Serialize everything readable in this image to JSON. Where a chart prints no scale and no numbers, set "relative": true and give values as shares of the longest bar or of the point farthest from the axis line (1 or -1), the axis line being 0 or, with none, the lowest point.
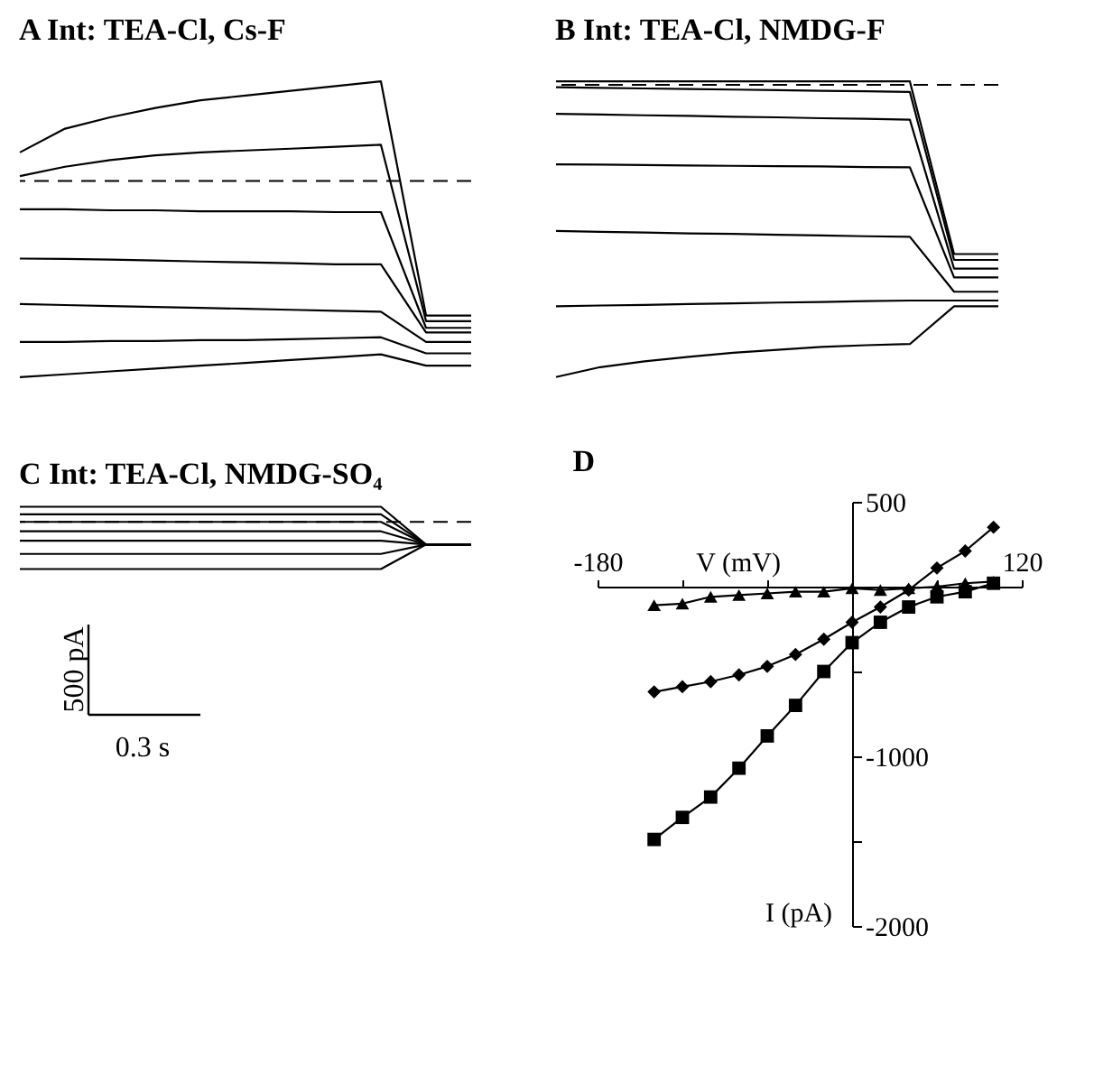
{
  "chart_data": [
    {
      "type": "line",
      "title": "A Int: TEA-Cl, Cs-F",
      "relative": true,
      "line_style": "solid",
      "marker": "none",
      "categories": [
        null,
        null,
        null,
        null,
        null,
        null,
        null,
        null,
        null,
        null,
        null
      ],
      "ref_lines": [
        {
          "axis": "y",
          "value": 0,
          "line_style": "dashed",
          "color": "#000000"
        }
      ],
      "series": [
        {
          "color": "#000000",
          "values": [
            0.145,
            0.266,
            0.324,
            0.372,
            0.411,
            0.435,
            0.459,
            0.483,
            0.507,
            -0.686,
            -0.686
          ]
        },
        {
          "color": "#000000",
          "values": [
            0.024,
            0.072,
            0.106,
            0.13,
            0.145,
            0.155,
            0.164,
            0.174,
            0.184,
            -0.715,
            -0.715
          ]
        },
        {
          "color": "#000000",
          "values": [
            -0.145,
            -0.145,
            -0.15,
            -0.15,
            -0.155,
            -0.155,
            -0.155,
            -0.159,
            -0.159,
            -0.749,
            -0.749
          ]
        },
        {
          "color": "#000000",
          "values": [
            -0.396,
            -0.398,
            -0.401,
            -0.406,
            -0.411,
            -0.415,
            -0.42,
            -0.425,
            -0.425,
            -0.773,
            -0.773
          ]
        },
        {
          "color": "#000000",
          "values": [
            -0.628,
            -0.633,
            -0.638,
            -0.643,
            -0.647,
            -0.652,
            -0.657,
            -0.662,
            -0.667,
            -0.821,
            -0.821
          ]
        },
        {
          "color": "#000000",
          "values": [
            -0.821,
            -0.821,
            -0.816,
            -0.816,
            -0.812,
            -0.812,
            -0.807,
            -0.802,
            -0.797,
            -0.879,
            -0.879
          ]
        },
        {
          "color": "#000000",
          "values": [
            -1,
            -0.986,
            -0.971,
            -0.957,
            -0.942,
            -0.928,
            -0.913,
            -0.899,
            -0.884,
            -0.942,
            -0.942
          ]
        }
      ]
    },
    {
      "type": "line",
      "title": "B Int: TEA-Cl, NMDG-F",
      "relative": true,
      "line_style": "solid",
      "marker": "none",
      "categories": [
        null,
        null,
        null,
        null,
        null,
        null,
        null,
        null,
        null,
        null,
        null
      ],
      "ref_lines": [
        {
          "axis": "y",
          "value": 0,
          "line_style": "dashed",
          "color": "#000000"
        }
      ],
      "series": [
        {
          "color": "#000000",
          "values": [
            0.012,
            0.012,
            0.012,
            0.012,
            0.012,
            0.012,
            0.012,
            0.012,
            0.012,
            -0.579,
            -0.579
          ]
        },
        {
          "color": "#000000",
          "values": [
            -0.008,
            -0.01,
            -0.012,
            -0.014,
            -0.016,
            -0.018,
            -0.02,
            -0.022,
            -0.024,
            -0.599,
            -0.599
          ]
        },
        {
          "color": "#000000",
          "values": [
            -0.099,
            -0.101,
            -0.104,
            -0.106,
            -0.109,
            -0.111,
            -0.114,
            -0.116,
            -0.119,
            -0.629,
            -0.629
          ]
        },
        {
          "color": "#000000",
          "values": [
            -0.272,
            -0.273,
            -0.274,
            -0.276,
            -0.277,
            -0.278,
            -0.279,
            -0.281,
            -0.282,
            -0.659,
            -0.659
          ]
        },
        {
          "color": "#000000",
          "values": [
            -0.5,
            -0.503,
            -0.505,
            -0.508,
            -0.51,
            -0.513,
            -0.515,
            -0.518,
            -0.52,
            -0.708,
            -0.708
          ]
        },
        {
          "color": "#000000",
          "values": [
            -0.758,
            -0.755,
            -0.753,
            -0.75,
            -0.748,
            -0.745,
            -0.743,
            -0.74,
            -0.738,
            -0.738,
            -0.738
          ]
        },
        {
          "color": "#000000",
          "values": [
            -1,
            -0.966,
            -0.946,
            -0.931,
            -0.917,
            -0.907,
            -0.897,
            -0.891,
            -0.887,
            -0.758,
            -0.758
          ]
        }
      ]
    },
    {
      "type": "line",
      "title": "C Int: TEA-Cl, NMDG-SO₄",
      "relative": true,
      "line_style": "solid",
      "marker": "none",
      "categories": [
        null,
        null,
        null,
        null,
        null,
        null,
        null,
        null,
        null,
        null,
        null
      ],
      "ref_lines": [
        {
          "axis": "y",
          "value": 0,
          "line_style": "dashed",
          "color": "#000000"
        }
      ],
      "annotations": [
        "500 pA",
        "0.3 s"
      ],
      "series": [
        {
          "color": "#000000",
          "values": [
            0.32,
            0.32,
            0.32,
            0.32,
            0.32,
            0.32,
            0.32,
            0.32,
            0.32,
            -0.48,
            -0.48
          ]
        },
        {
          "color": "#000000",
          "values": [
            0.16,
            0.16,
            0.16,
            0.16,
            0.16,
            0.16,
            0.16,
            0.16,
            0.16,
            -0.48,
            -0.48
          ]
        },
        {
          "color": "#000000",
          "values": [
            0,
            0,
            0,
            0,
            0,
            0,
            0,
            0,
            0,
            -0.48,
            -0.48
          ]
        },
        {
          "color": "#000000",
          "values": [
            -0.2,
            -0.2,
            -0.2,
            -0.2,
            -0.2,
            -0.2,
            -0.2,
            -0.2,
            -0.2,
            -0.48,
            -0.48
          ]
        },
        {
          "color": "#000000",
          "values": [
            -0.4,
            -0.4,
            -0.4,
            -0.4,
            -0.4,
            -0.4,
            -0.4,
            -0.4,
            -0.4,
            -0.48,
            -0.48
          ]
        },
        {
          "color": "#000000",
          "values": [
            -0.68,
            -0.68,
            -0.68,
            -0.68,
            -0.68,
            -0.68,
            -0.68,
            -0.68,
            -0.68,
            -0.48,
            -0.48
          ]
        },
        {
          "color": "#000000",
          "values": [
            -1,
            -1,
            -1,
            -1,
            -1,
            -1,
            -1,
            -1,
            -1,
            -0.48,
            -0.48
          ]
        }
      ]
    },
    {
      "type": "line",
      "title": "D",
      "xlabel": "V (mV)",
      "ylabel": "I (pA)",
      "grid": false,
      "line_style": "solid",
      "xlim": [
        -180,
        120
      ],
      "xticks": [
        -180,
        {
          "value": -120,
          "label": null
        },
        {
          "value": -60,
          "label": null
        },
        {
          "value": 60,
          "label": null
        },
        120
      ],
      "ylim": [
        -2000,
        500
      ],
      "yticks": [
        500,
        {
          "value": -500,
          "label": null
        },
        -1000,
        {
          "value": -1500,
          "label": null
        },
        -2000
      ],
      "x": [
        -140,
        -120,
        -100,
        -80,
        -60,
        -40,
        -20,
        0,
        20,
        40,
        60,
        80,
        100
      ],
      "series": [
        {
          "color": "#000000",
          "marker": "triangle",
          "values": [
            -110,
            -100,
            -60,
            -50,
            -40,
            -30,
            -30,
            -10,
            -20,
            -10,
            0,
            20,
            30
          ]
        },
        {
          "color": "#000000",
          "marker": "diamond",
          "values": [
            -620,
            -590,
            -560,
            -520,
            -470,
            -400,
            -310,
            -210,
            -120,
            -20,
            110,
            210,
            350
          ]
        },
        {
          "color": "#000000",
          "marker": "square",
          "values": [
            -1490,
            -1360,
            -1240,
            -1070,
            -880,
            -700,
            -500,
            -330,
            -210,
            -120,
            -60,
            -30,
            20
          ]
        }
      ]
    }
  ]
}
